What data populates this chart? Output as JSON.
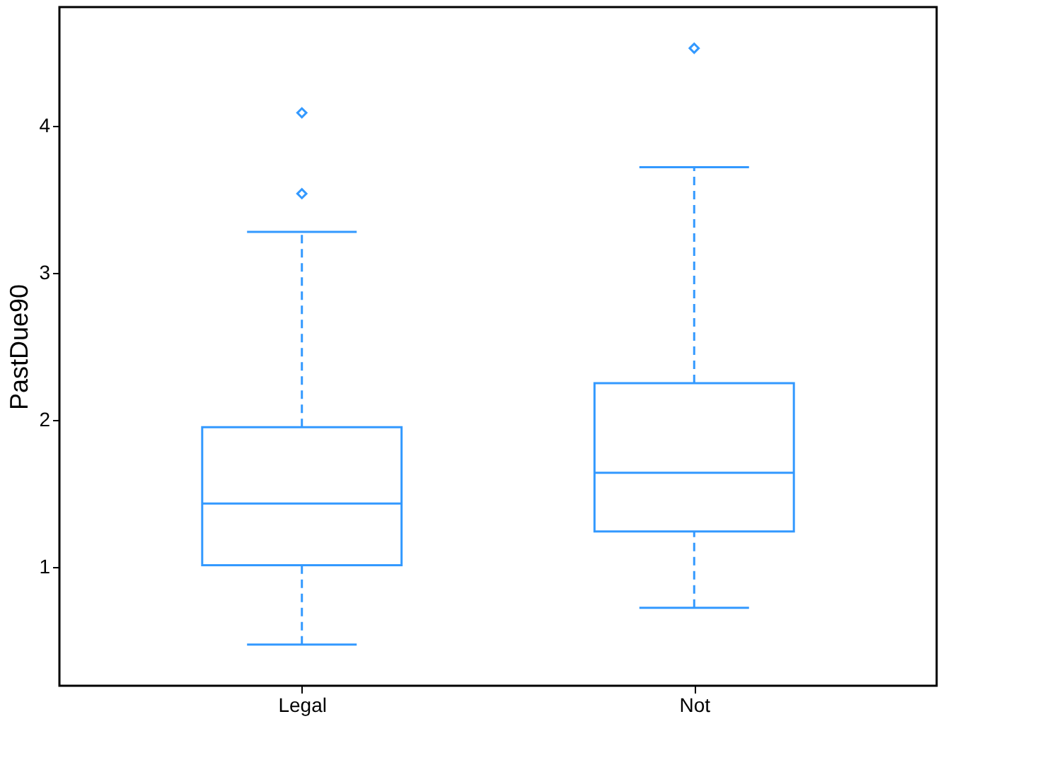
{
  "chart_data": {
    "type": "box",
    "categories": [
      "Legal",
      "Not"
    ],
    "ylabel": "PastDue90",
    "ylim": [
      0.19,
      4.81
    ],
    "yticks": [
      1,
      2,
      3,
      4
    ],
    "color": "#3399ff",
    "line_style": "dashed",
    "marker": "diamond",
    "grid": false,
    "boxes": [
      {
        "low": 0.47,
        "q1": 1.01,
        "median": 1.43,
        "q3": 1.95,
        "high": 3.28,
        "outliers": [
          3.54,
          4.09
        ]
      },
      {
        "low": 0.72,
        "q1": 1.24,
        "median": 1.64,
        "q3": 2.25,
        "high": 3.72,
        "outliers": [
          4.53
        ]
      }
    ]
  }
}
